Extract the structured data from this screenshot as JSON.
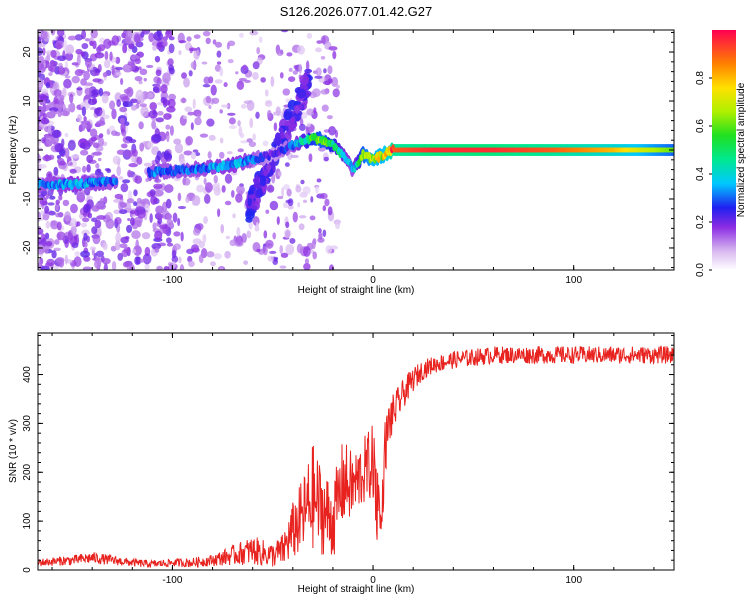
{
  "page": {
    "title": "S126.2026.077.01.42.G27"
  },
  "chart_data": [
    {
      "type": "heatmap",
      "title": "S126.2026.077.01.42.G27",
      "xlabel": "Height of straight line (km)",
      "ylabel": "Frequency (Hz)",
      "xlim": [
        -167,
        150
      ],
      "ylim": [
        -24.5,
        24.5
      ],
      "xticks": [
        -100,
        0,
        100
      ],
      "yticks": [
        -20,
        -10,
        0,
        10,
        20
      ],
      "colorbar": {
        "label": "Normalized spectral amplitude",
        "range": [
          0,
          1
        ],
        "ticks": [
          0.0,
          0.2,
          0.4,
          0.6,
          0.8
        ]
      },
      "ridge": {
        "description_points_x": [
          -167,
          -150,
          -130,
          -110,
          -90,
          -70,
          -60,
          -50,
          -40,
          -30,
          -25,
          -20,
          -15,
          -10,
          -5,
          0,
          5,
          10,
          30,
          60,
          90,
          120,
          150
        ],
        "frequency": [
          -7,
          -7,
          -6.5,
          -4.5,
          -4,
          -3,
          -2,
          -1,
          1,
          2.5,
          2,
          1,
          -1,
          -4,
          -1,
          -2,
          -1,
          0,
          0,
          0,
          0,
          0,
          0
        ],
        "amplitude": [
          0.3,
          0.35,
          0.3,
          0.3,
          0.3,
          0.35,
          0.3,
          0.2,
          0.3,
          0.55,
          0.6,
          0.5,
          0.4,
          0.3,
          0.6,
          0.7,
          0.7,
          0.9,
          0.95,
          0.95,
          0.9,
          0.8,
          0.6
        ]
      }
    },
    {
      "type": "line",
      "title": "",
      "xlabel": "Height of straight line (km)",
      "ylabel": "SNR (10 * v/v)",
      "xlim": [
        -167,
        150
      ],
      "ylim": [
        0,
        485
      ],
      "xticks": [
        -100,
        0,
        100
      ],
      "yticks": [
        0,
        100,
        200,
        300,
        400
      ],
      "series": [
        {
          "name": "SNR",
          "color": "#e8221e",
          "envelope_x": [
            -167,
            -150,
            -140,
            -130,
            -120,
            -110,
            -100,
            -90,
            -80,
            -70,
            -60,
            -50,
            -45,
            -40,
            -35,
            -30,
            -25,
            -20,
            -15,
            -10,
            -5,
            0,
            2,
            4,
            6,
            8,
            10,
            15,
            20,
            25,
            30,
            40,
            60,
            80,
            100,
            120,
            150
          ],
          "envelope_mean": [
            15,
            20,
            25,
            20,
            15,
            12,
            15,
            15,
            20,
            30,
            40,
            30,
            40,
            80,
            110,
            150,
            120,
            100,
            180,
            170,
            200,
            220,
            150,
            80,
            250,
            300,
            320,
            360,
            390,
            410,
            420,
            430,
            440,
            440,
            440,
            440,
            440
          ],
          "envelope_noise": [
            8,
            10,
            12,
            10,
            8,
            8,
            8,
            10,
            12,
            20,
            30,
            25,
            35,
            60,
            80,
            110,
            90,
            80,
            90,
            70,
            70,
            80,
            120,
            40,
            60,
            50,
            40,
            30,
            25,
            20,
            18,
            18,
            18,
            18,
            18,
            18,
            18
          ]
        }
      ]
    }
  ],
  "colors": {
    "line": "#e8221e",
    "frame": "#000000"
  }
}
